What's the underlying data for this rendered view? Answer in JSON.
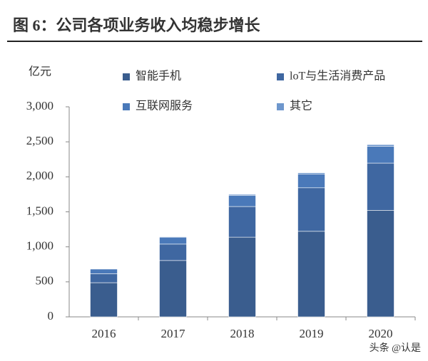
{
  "chart_data": {
    "type": "stacked-bar",
    "title": "图 6：公司各项业务收入均稳步增长",
    "y_label": "亿元",
    "categories": [
      "2016",
      "2017",
      "2018",
      "2019",
      "2020"
    ],
    "series": [
      {
        "name": "智能手机",
        "color": "#3a5d8e",
        "values": [
          488,
          805,
          1138,
          1222,
          1522
        ]
      },
      {
        "name": "loT与生活消费产品",
        "color": "#3f67a1",
        "values": [
          129,
          234,
          438,
          621,
          674
        ]
      },
      {
        "name": "互联网服务",
        "color": "#4a79b9",
        "values": [
          66,
          99,
          160,
          198,
          238
        ]
      },
      {
        "name": "其它",
        "color": "#6e97cd",
        "values": [
          2,
          7,
          13,
          17,
          26
        ]
      }
    ],
    "ylim": [
      0,
      3000
    ],
    "yticks": [
      0,
      500,
      {
        "value": 1000,
        "label": "1,000"
      },
      {
        "value": 1500,
        "label": "1,500"
      },
      {
        "value": 2000,
        "label": "2,000"
      },
      {
        "value": 2500,
        "label": "2,500"
      },
      {
        "value": 3000,
        "label": "3,000"
      }
    ],
    "watermark": "头条 @认是"
  }
}
